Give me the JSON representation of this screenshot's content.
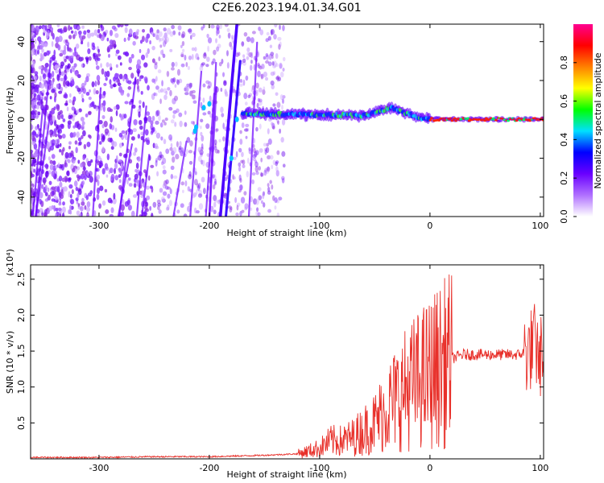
{
  "title": "C2E6.2023.194.01.34.G01",
  "colors": {
    "snr_line": "#e8302a",
    "spectral_point": "#8a2be2",
    "axis": "#000000"
  },
  "colorbar": {
    "label": "Normalized spectral amplitude",
    "ticks": [
      "0.0",
      "0.2",
      "0.4",
      "0.6",
      "0.8"
    ],
    "tick_values": [
      0.0,
      0.2,
      0.4,
      0.6,
      0.8
    ],
    "range": [
      0,
      1
    ],
    "colors": [
      "#ffffff",
      "#b070ff",
      "#6a00ff",
      "#0000ff",
      "#00e0ff",
      "#00ff00",
      "#ffff00",
      "#ff8000",
      "#ff0000",
      "#ff0090"
    ]
  },
  "chart_data": [
    {
      "type": "heatmap",
      "xlabel": "Height of straight line (km)",
      "ylabel": "Frequency (Hz)",
      "xlim": [
        -362,
        103
      ],
      "ylim": [
        -50,
        49
      ],
      "xticks": [
        -300,
        -200,
        -100,
        0,
        100
      ],
      "xtick_labels": [
        "-300",
        "-200",
        "-100",
        "0",
        "100"
      ],
      "yticks": [
        -40,
        -20,
        0,
        20,
        40
      ],
      "ytick_labels": [
        "-40",
        "-20",
        "0",
        "20",
        "40"
      ],
      "features": {
        "line_a": {
          "x": [
            -190,
            -175
          ],
          "y": [
            -50,
            49
          ]
        },
        "line_b": {
          "x": [
            -185,
            -172
          ],
          "y": [
            -50,
            30
          ]
        },
        "carrier": {
          "x": [
            -170,
            -60,
            -35,
            -10,
            0,
            100
          ],
          "y": [
            3,
            2,
            6,
            1,
            0,
            0
          ]
        }
      }
    },
    {
      "type": "line",
      "xlabel": "Height of straight line (km)",
      "ylabel": "SNR (10 * v/v)",
      "yscale_label": "(x10⁴)",
      "xlim": [
        -362,
        103
      ],
      "ylim": [
        0,
        2.7
      ],
      "xticks": [
        -300,
        -200,
        -100,
        0,
        100
      ],
      "xtick_labels": [
        "-300",
        "-200",
        "-100",
        "0",
        "100"
      ],
      "yticks": [
        0.5,
        1.0,
        1.5,
        2.0,
        2.5
      ],
      "ytick_labels": [
        "0.5",
        "1.0",
        "1.5",
        "2.0",
        "2.5"
      ],
      "series": [
        {
          "x": [
            -362,
            -300,
            -250,
            -200,
            -150,
            -120,
            -100,
            -90,
            -80,
            -70,
            -60,
            -50,
            -40,
            -30,
            -20,
            -10,
            0,
            10,
            20,
            30,
            40,
            50,
            60,
            70,
            80,
            90,
            95,
            98,
            100,
            103
          ],
          "y": [
            0.02,
            0.02,
            0.03,
            0.03,
            0.05,
            0.07,
            0.15,
            0.25,
            0.25,
            0.3,
            0.4,
            0.5,
            0.7,
            0.85,
            1.0,
            1.1,
            1.2,
            1.3,
            1.4,
            1.45,
            1.45,
            1.45,
            1.45,
            1.45,
            1.45,
            1.5,
            1.6,
            1.5,
            1.45,
            1.45
          ]
        }
      ]
    }
  ]
}
